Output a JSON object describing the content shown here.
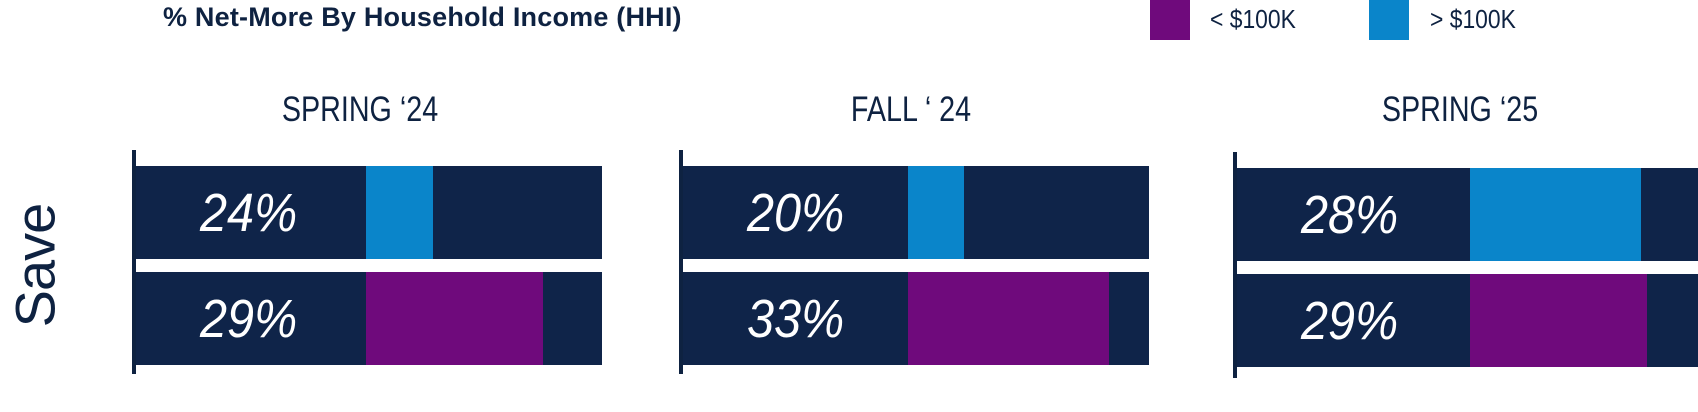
{
  "chart_data": {
    "type": "bar",
    "title": "% Net-More By Household Income (HHI)",
    "row_label": "Save",
    "legend_position": "top-right",
    "series": [
      {
        "name": "> $100K",
        "color": "#0a85ca"
      },
      {
        "name": "< $100K",
        "color": "#6f0a7c"
      }
    ],
    "legend_order": [
      1,
      0
    ],
    "panels": [
      {
        "title": "SPRING ‘24",
        "values": [
          24,
          29
        ],
        "labels": [
          "24%",
          "29%"
        ]
      },
      {
        "title": "FALL ‘ 24",
        "values": [
          20,
          33
        ],
        "labels": [
          "20%",
          "33%"
        ]
      },
      {
        "title": "SPRING ‘25",
        "values": [
          28,
          29
        ],
        "labels": [
          "28%",
          "29%"
        ]
      }
    ]
  }
}
